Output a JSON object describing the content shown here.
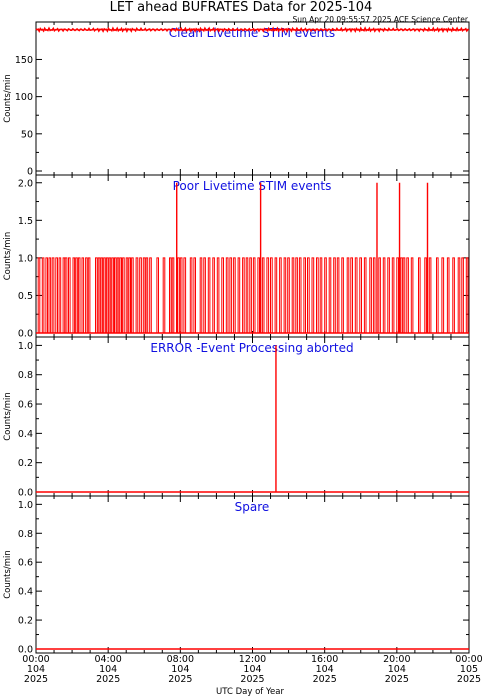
{
  "title": "LET ahead BUFRATES Data for 2025-104",
  "subtitle": "Sun Apr 20 09:55:57 2025 ACE Science Center",
  "xlabel": "UTC Day of Year",
  "colors": {
    "series": "#ff0000",
    "panel_title": "#1010e0",
    "axes": "#000000"
  },
  "x_ticks": [
    {
      "time": "00:00",
      "doy": "104",
      "year": "2025"
    },
    {
      "time": "04:00",
      "doy": "104",
      "year": "2025"
    },
    {
      "time": "08:00",
      "doy": "104",
      "year": "2025"
    },
    {
      "time": "12:00",
      "doy": "104",
      "year": "2025"
    },
    {
      "time": "16:00",
      "doy": "104",
      "year": "2025"
    },
    {
      "time": "20:00",
      "doy": "104",
      "year": "2025"
    },
    {
      "time": "00:00",
      "doy": "105",
      "year": "2025"
    }
  ],
  "chart_data": [
    {
      "type": "line",
      "title": "Clean Livetime STIM events",
      "ylabel": "Counts/min",
      "xlim": [
        0,
        24
      ],
      "ylim": [
        0,
        195
      ],
      "yticks": [
        "0",
        "50",
        "100",
        "150"
      ],
      "ytick_values": [
        0,
        50,
        100,
        150
      ],
      "series": [
        {
          "values_description": "constant",
          "baseline": 190,
          "jitter": 2
        }
      ],
      "spikes": []
    },
    {
      "type": "line",
      "title": "Poor Livetime STIM events",
      "ylabel": "Counts/min",
      "xlim": [
        0,
        24
      ],
      "ylim": [
        0,
        2.05
      ],
      "yticks": [
        "0.0",
        "0.5",
        "1.0",
        "1.5",
        "2.0"
      ],
      "ytick_values": [
        0,
        0.5,
        1.0,
        1.5,
        2.0
      ],
      "ones": [
        0.12,
        0.35,
        0.55,
        0.72,
        0.9,
        1.1,
        1.28,
        1.5,
        1.62,
        1.8,
        2.05,
        2.2,
        2.35,
        2.55,
        2.75,
        2.9,
        3.3,
        3.45,
        3.6,
        3.75,
        3.9,
        4.05,
        4.2,
        4.35,
        4.5,
        4.65,
        4.8,
        5.0,
        5.15,
        5.3,
        5.55,
        5.75,
        5.95,
        6.1,
        6.3,
        6.7,
        7.05,
        7.4,
        7.55,
        7.85,
        8.0,
        8.2,
        8.55,
        8.75,
        9.1,
        9.3,
        9.55,
        9.8,
        10.05,
        10.3,
        10.55,
        10.75,
        10.95,
        11.2,
        11.45,
        11.65,
        11.85,
        12.05,
        12.3,
        12.55,
        12.8,
        13.0,
        13.25,
        13.5,
        13.75,
        13.95,
        14.2,
        14.4,
        14.6,
        14.85,
        15.05,
        15.3,
        15.55,
        15.75,
        16.0,
        16.25,
        16.5,
        16.7,
        16.95,
        17.25,
        17.45,
        17.7,
        17.95,
        18.2,
        18.5,
        18.7,
        19.0,
        19.25,
        19.5,
        19.75,
        20.0,
        20.2,
        20.35,
        20.55,
        20.8,
        21.2,
        21.55,
        21.8,
        22.2,
        22.5,
        22.8,
        23.1,
        23.4,
        23.6,
        23.85
      ],
      "spikes": [
        {
          "x": 7.8,
          "value": 2
        },
        {
          "x": 12.45,
          "value": 2
        },
        {
          "x": 18.9,
          "value": 2
        },
        {
          "x": 20.15,
          "value": 2
        },
        {
          "x": 21.7,
          "value": 2
        }
      ]
    },
    {
      "type": "line",
      "title": "ERROR -Event Processing aborted",
      "ylabel": "Counts/min",
      "xlim": [
        0,
        24
      ],
      "ylim": [
        0,
        1.03
      ],
      "yticks": [
        "0.0",
        "0.2",
        "0.4",
        "0.6",
        "0.8",
        "1.0"
      ],
      "ytick_values": [
        0,
        0.2,
        0.4,
        0.6,
        0.8,
        1.0
      ],
      "ones": [],
      "spikes": [
        {
          "x": 13.3,
          "value": 1
        }
      ]
    },
    {
      "type": "line",
      "title": "Spare",
      "ylabel": "Counts/min",
      "xlim": [
        0,
        24
      ],
      "ylim": [
        0,
        1.03
      ],
      "yticks": [
        "0.0",
        "0.2",
        "0.4",
        "0.6",
        "0.8",
        "1.0"
      ],
      "ytick_values": [
        0,
        0.2,
        0.4,
        0.6,
        0.8,
        1.0
      ],
      "ones": [],
      "spikes": []
    }
  ]
}
